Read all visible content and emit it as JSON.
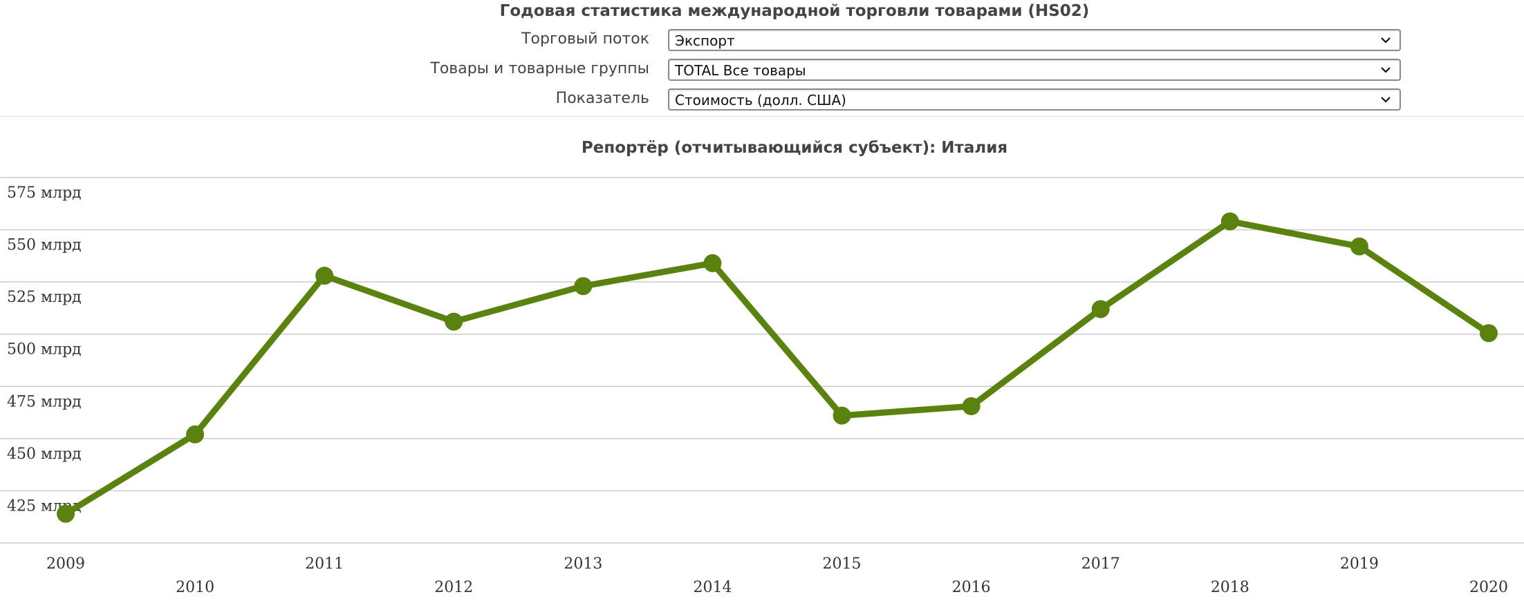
{
  "header": {
    "title": "Годовая статистика международной торговли товарами (HS02)"
  },
  "filters": [
    {
      "label": "Торговый поток",
      "value": "Экспорт"
    },
    {
      "label": "Товары и товарные группы",
      "value": "TOTAL Все товары"
    },
    {
      "label": "Показатель",
      "value": "Стоимость (долл. США)"
    }
  ],
  "colors": {
    "series": "#5a820f",
    "grid": "#cccccc",
    "text": "#444444"
  },
  "chart_data": {
    "type": "line",
    "title": "Репортёр (отчитывающийся субъект): Италия",
    "xlabel": "",
    "ylabel": "",
    "x": [
      "2009",
      "2010",
      "2011",
      "2012",
      "2013",
      "2014",
      "2015",
      "2016",
      "2017",
      "2018",
      "2019",
      "2020"
    ],
    "series": [
      {
        "values": [
          414,
          452,
          528,
          506,
          523,
          534,
          461,
          465.5,
          512,
          554,
          542,
          500.5
        ]
      }
    ],
    "y_ticks": [
      {
        "value": 425,
        "label": "425 млрд"
      },
      {
        "value": 450,
        "label": "450 млрд"
      },
      {
        "value": 475,
        "label": "475 млрд"
      },
      {
        "value": 500,
        "label": "500 млрд"
      },
      {
        "value": 525,
        "label": "525 млрд"
      },
      {
        "value": 550,
        "label": "550 млрд"
      },
      {
        "value": 575,
        "label": "575 млрд"
      }
    ],
    "ylim": [
      400,
      575
    ],
    "grid": true,
    "legend": "none"
  }
}
